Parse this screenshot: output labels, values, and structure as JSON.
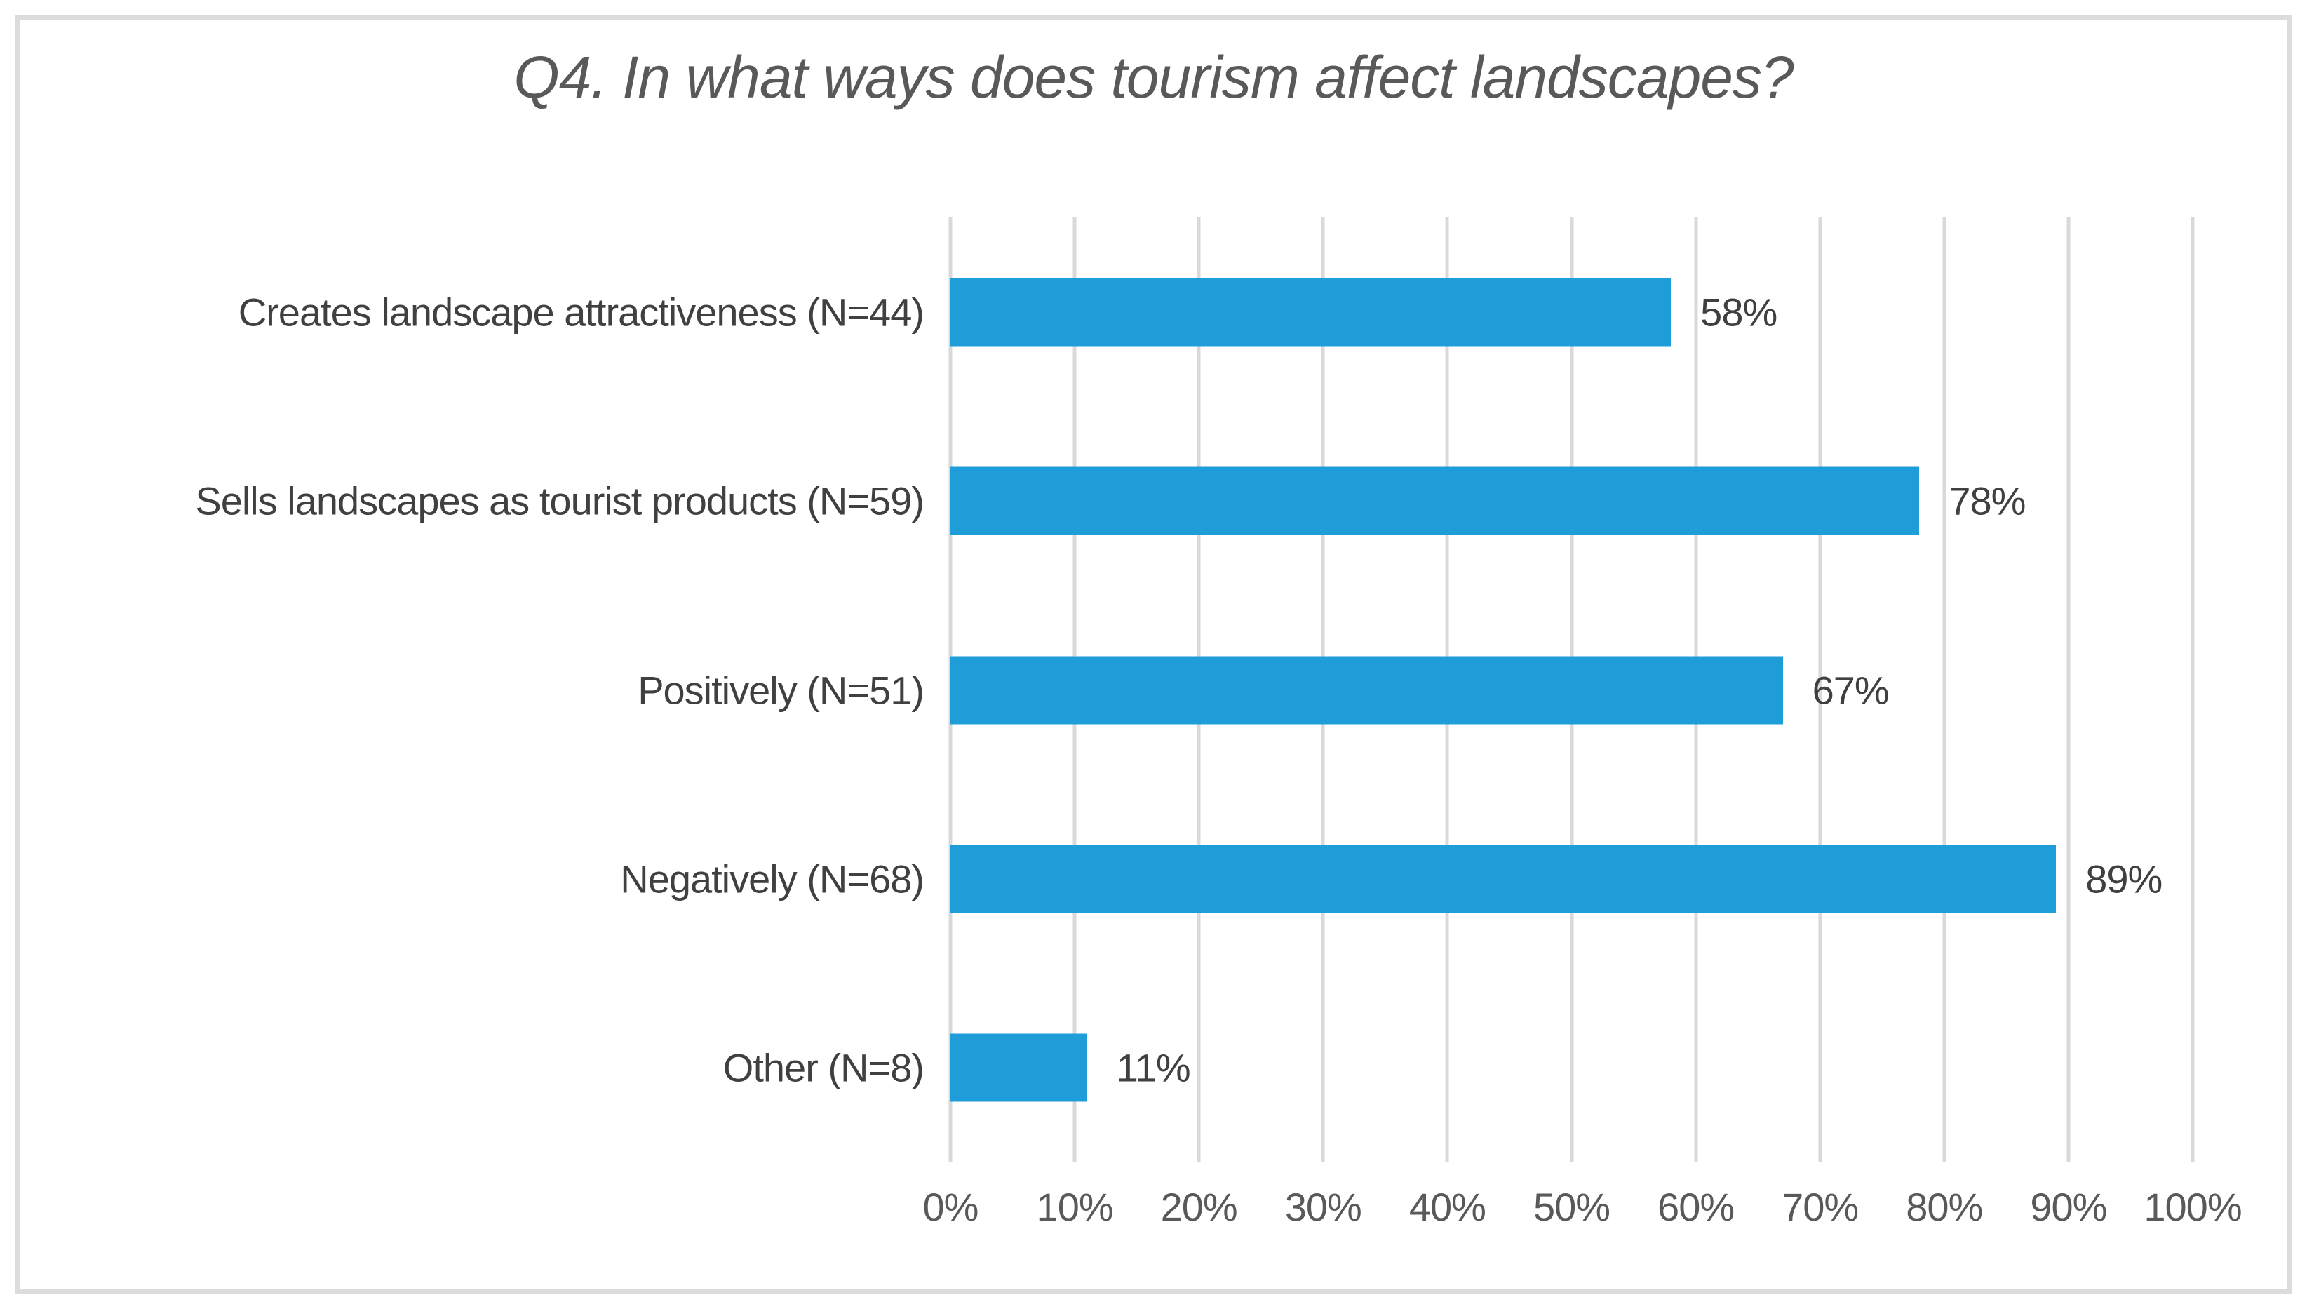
{
  "title": "Q4. In what ways does tourism affect landscapes?",
  "colors": {
    "bar": "#1f9dd9",
    "gridline": "#d9d9d9",
    "title_text": "#595959",
    "axis_text": "#595959",
    "label_text": "#404040",
    "frame_border": "#dcdcdc",
    "background": "#ffffff"
  },
  "chart_data": {
    "type": "bar",
    "orientation": "horizontal",
    "title": "Q4. In what ways does tourism affect landscapes?",
    "categories": [
      "Creates landscape attractiveness (N=44)",
      "Sells landscapes as tourist products (N=59)",
      "Positively (N=51)",
      "Negatively (N=68)",
      "Other (N=8)"
    ],
    "values": [
      58,
      78,
      67,
      89,
      11
    ],
    "value_labels": [
      "58%",
      "78%",
      "67%",
      "89%",
      "11%"
    ],
    "x_ticks": [
      "0%",
      "10%",
      "20%",
      "30%",
      "40%",
      "50%",
      "60%",
      "70%",
      "80%",
      "90%",
      "100%"
    ],
    "xlim": [
      0,
      100
    ],
    "grid": "vertical-only",
    "legend": "none",
    "data_labels": "outside-end"
  }
}
